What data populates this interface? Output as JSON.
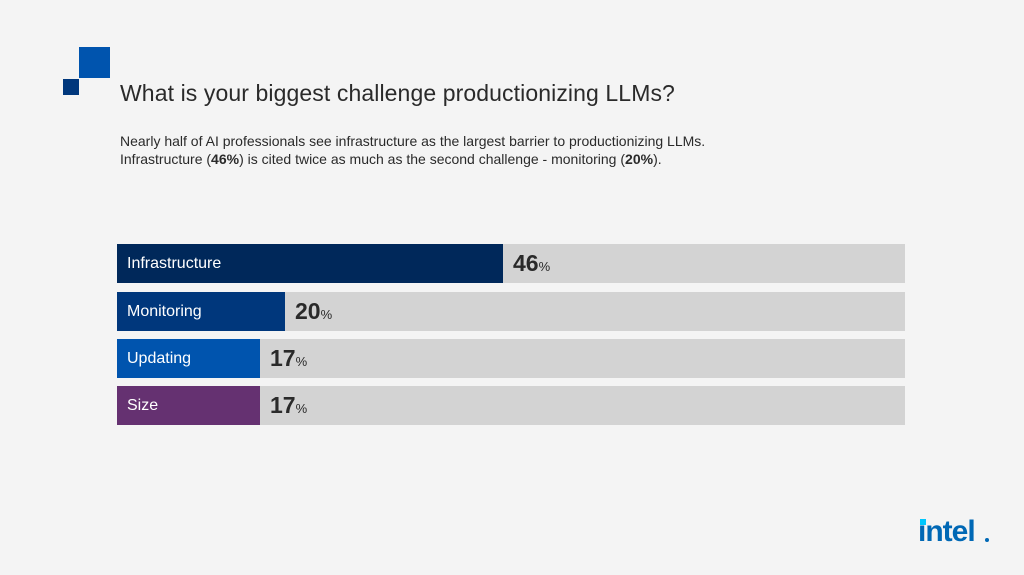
{
  "header": {
    "title": "What is your biggest challenge productionizing LLMs?",
    "subtitle_line1": "Nearly half of AI professionals see infrastructure as the largest barrier to productionizing LLMs.",
    "subtitle_line2_a": "Infrastructure (",
    "subtitle_line2_b": "46%",
    "subtitle_line2_c": ") is cited twice as much as the second challenge - monitoring (",
    "subtitle_line2_d": "20%",
    "subtitle_line2_e": ")."
  },
  "chart_data": {
    "type": "bar",
    "orientation": "horizontal",
    "title": "What is your biggest challenge productionizing LLMs?",
    "categories": [
      "Infrastructure",
      "Monitoring",
      "Updating",
      "Size"
    ],
    "values": [
      46,
      20,
      17,
      17
    ],
    "unit": "%",
    "colors": [
      "#00285a",
      "#00377c",
      "#0054ae",
      "#653171"
    ],
    "track_color": "#d3d3d3",
    "xlim": [
      0,
      94
    ],
    "grid": false,
    "legend": "none"
  },
  "brand": {
    "logo_text": "intel",
    "primary_color": "#0068b5",
    "accent_color": "#00c7fd"
  }
}
